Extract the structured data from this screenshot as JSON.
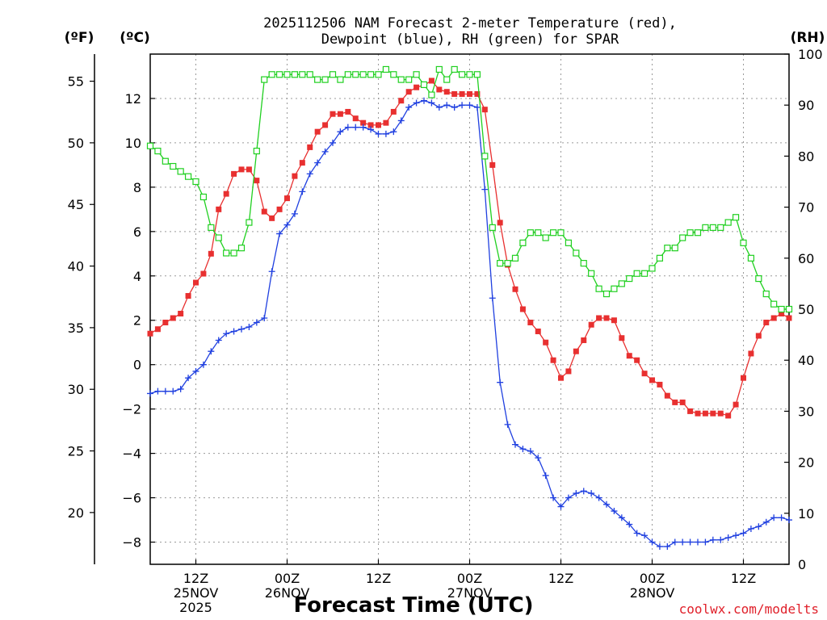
{
  "chart_data": {
    "type": "line",
    "title": "2025112506 NAM Forecast 2-meter Temperature (red), Dewpoint (blue), RH (green) for SPAR",
    "title_lines": [
      "2025112506 NAM Forecast 2-meter Temperature (red),",
      "Dewpoint (blue), RH (green) for SPAR"
    ],
    "xlabel": "Forecast Time (UTC)",
    "credit": "coolwx.com/modelts",
    "units": {
      "f": "(ºF)",
      "c": "(ºC)",
      "rh": "(RH)"
    },
    "x_unit": "hours since 2025-11-25 06Z",
    "xlim": [
      0,
      84
    ],
    "ylim_c": [
      -9,
      14
    ],
    "ylim_rh": [
      0,
      100
    ],
    "x_ticks": [
      {
        "hour": 6,
        "lines": [
          "12Z",
          "25NOV",
          "2025"
        ]
      },
      {
        "hour": 18,
        "lines": [
          "00Z",
          "26NOV"
        ]
      },
      {
        "hour": 30,
        "lines": [
          "12Z"
        ]
      },
      {
        "hour": 42,
        "lines": [
          "00Z",
          "27NOV"
        ]
      },
      {
        "hour": 54,
        "lines": [
          "12Z"
        ]
      },
      {
        "hour": 66,
        "lines": [
          "00Z",
          "28NOV"
        ]
      },
      {
        "hour": 78,
        "lines": [
          "12Z"
        ]
      }
    ],
    "c_ticks": [
      "-8",
      "-6",
      "-4",
      "-2",
      "0",
      "2",
      "4",
      "6",
      "8",
      "10",
      "12"
    ],
    "f_ticks": [
      "20",
      "25",
      "30",
      "35",
      "40",
      "45",
      "50",
      "55"
    ],
    "rh_ticks": [
      "0",
      "10",
      "20",
      "30",
      "40",
      "50",
      "60",
      "70",
      "80",
      "90",
      "100"
    ],
    "grid": true,
    "hours": [
      0,
      1,
      2,
      3,
      4,
      5,
      6,
      7,
      8,
      9,
      10,
      11,
      12,
      13,
      14,
      15,
      16,
      17,
      18,
      19,
      20,
      21,
      22,
      23,
      24,
      25,
      26,
      27,
      28,
      29,
      30,
      31,
      32,
      33,
      34,
      35,
      36,
      37,
      38,
      39,
      40,
      41,
      42,
      43,
      44,
      45,
      46,
      47,
      48,
      49,
      50,
      51,
      52,
      53,
      54,
      55,
      56,
      57,
      58,
      59,
      60,
      61,
      62,
      63,
      64,
      65,
      66,
      67,
      68,
      69,
      70,
      71,
      72,
      73,
      74,
      75,
      76,
      77,
      78,
      79,
      80,
      81,
      82,
      83,
      84
    ],
    "series": [
      {
        "name": "2-meter Temperature",
        "unit": "C",
        "color": "#e83030",
        "marker": "filled-square",
        "values": [
          1.4,
          1.6,
          1.9,
          2.1,
          2.3,
          3.1,
          3.7,
          4.1,
          5.0,
          7.0,
          7.7,
          8.6,
          8.8,
          8.8,
          8.3,
          6.9,
          6.6,
          7.0,
          7.5,
          8.5,
          9.1,
          9.8,
          10.5,
          10.8,
          11.3,
          11.3,
          11.4,
          11.1,
          10.9,
          10.8,
          10.8,
          10.9,
          11.4,
          11.9,
          12.3,
          12.5,
          12.6,
          12.8,
          12.4,
          12.3,
          12.2,
          12.2,
          12.2,
          12.2,
          11.5,
          9.0,
          6.4,
          4.5,
          3.4,
          2.5,
          1.9,
          1.5,
          1.0,
          0.2,
          -0.6,
          -0.3,
          0.6,
          1.1,
          1.8,
          2.1,
          2.1,
          2.0,
          1.2,
          0.4,
          0.2,
          -0.4,
          -0.7,
          -0.9,
          -1.4,
          -1.7,
          -1.7,
          -2.1,
          -2.2,
          -2.2,
          -2.2,
          -2.2,
          -2.3,
          -1.8,
          -0.6,
          0.5,
          1.3,
          1.9,
          2.1,
          2.3,
          2.1
        ]
      },
      {
        "name": "Dewpoint",
        "unit": "C",
        "color": "#2040e0",
        "marker": "plus",
        "values": [
          -1.3,
          -1.2,
          -1.2,
          -1.2,
          -1.1,
          -0.6,
          -0.3,
          0.0,
          0.6,
          1.1,
          1.4,
          1.5,
          1.6,
          1.7,
          1.9,
          2.1,
          4.2,
          5.9,
          6.3,
          6.8,
          7.8,
          8.6,
          9.1,
          9.6,
          10.0,
          10.5,
          10.7,
          10.7,
          10.7,
          10.6,
          10.4,
          10.4,
          10.5,
          11.0,
          11.6,
          11.8,
          11.9,
          11.8,
          11.6,
          11.7,
          11.6,
          11.7,
          11.7,
          11.6,
          7.9,
          3.0,
          -0.8,
          -2.7,
          -3.6,
          -3.8,
          -3.9,
          -4.2,
          -5.0,
          -6.0,
          -6.4,
          -6.0,
          -5.8,
          -5.7,
          -5.8,
          -6.0,
          -6.3,
          -6.6,
          -6.9,
          -7.2,
          -7.6,
          -7.7,
          -8.0,
          -8.2,
          -8.2,
          -8.0,
          -8.0,
          -8.0,
          -8.0,
          -8.0,
          -7.9,
          -7.9,
          -7.8,
          -7.7,
          -7.6,
          -7.4,
          -7.3,
          -7.1,
          -6.9,
          -6.9,
          -7.0
        ]
      },
      {
        "name": "RH",
        "unit": "%",
        "color": "#20d020",
        "marker": "open-square",
        "values": [
          82,
          81,
          79,
          78,
          77,
          76,
          75,
          72,
          66,
          64,
          61,
          61,
          62,
          67,
          81,
          95,
          96,
          96,
          96,
          96,
          96,
          96,
          95,
          95,
          96,
          95,
          96,
          96,
          96,
          96,
          96,
          97,
          96,
          95,
          95,
          96,
          94,
          92,
          97,
          95,
          97,
          96,
          96,
          96,
          80,
          66,
          59,
          59,
          60,
          63,
          65,
          65,
          64,
          65,
          65,
          63,
          61,
          59,
          57,
          54,
          53,
          54,
          55,
          56,
          57,
          57,
          58,
          60,
          62,
          62,
          64,
          65,
          65,
          66,
          66,
          66,
          67,
          68,
          63,
          60,
          56,
          53,
          51,
          50,
          50
        ]
      }
    ]
  }
}
